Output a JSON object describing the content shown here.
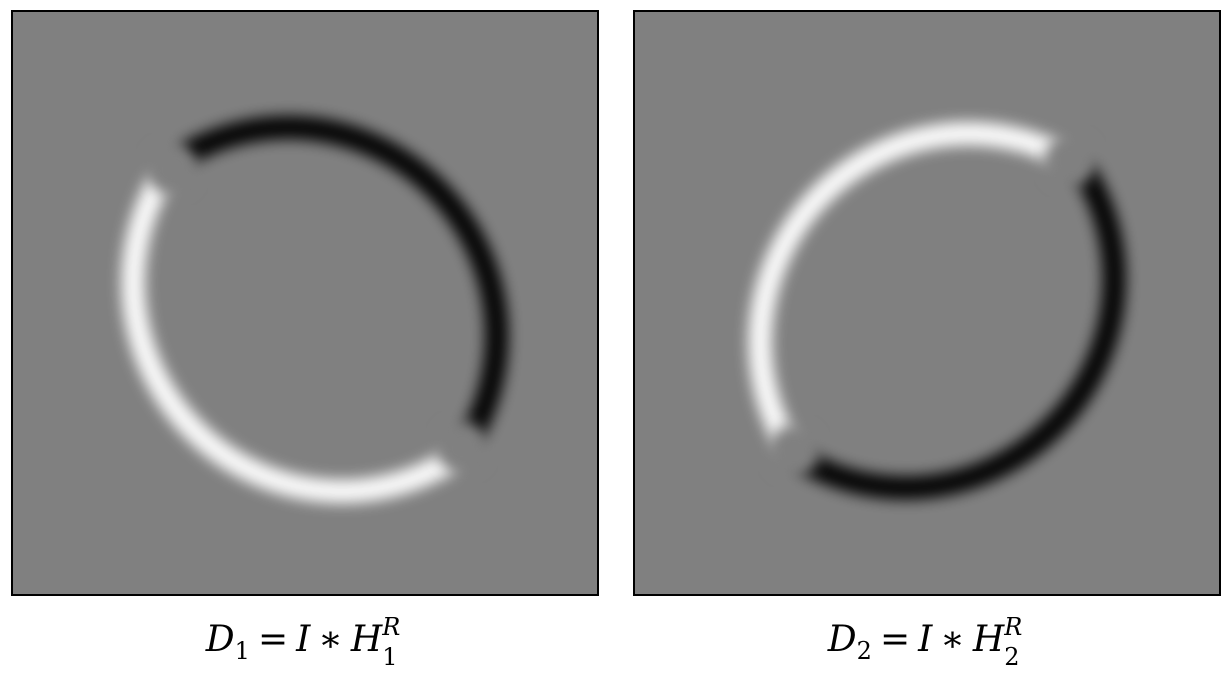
{
  "captions": {
    "left": {
      "lhs_symbol": "D",
      "lhs_index": "1",
      "equals": "=",
      "image_symbol": "I",
      "operator": "∗",
      "filter_symbol": "H",
      "filter_superscript": "R",
      "filter_subscript": "1"
    },
    "right": {
      "lhs_symbol": "D",
      "lhs_index": "2",
      "equals": "=",
      "image_symbol": "I",
      "operator": "∗",
      "filter_symbol": "H",
      "filter_superscript": "R",
      "filter_subscript": "2"
    }
  },
  "colors": {
    "background_gray": "#808080",
    "ridge_bright": "#ffffff",
    "ridge_dark": "#000000",
    "frame": "#000000"
  }
}
